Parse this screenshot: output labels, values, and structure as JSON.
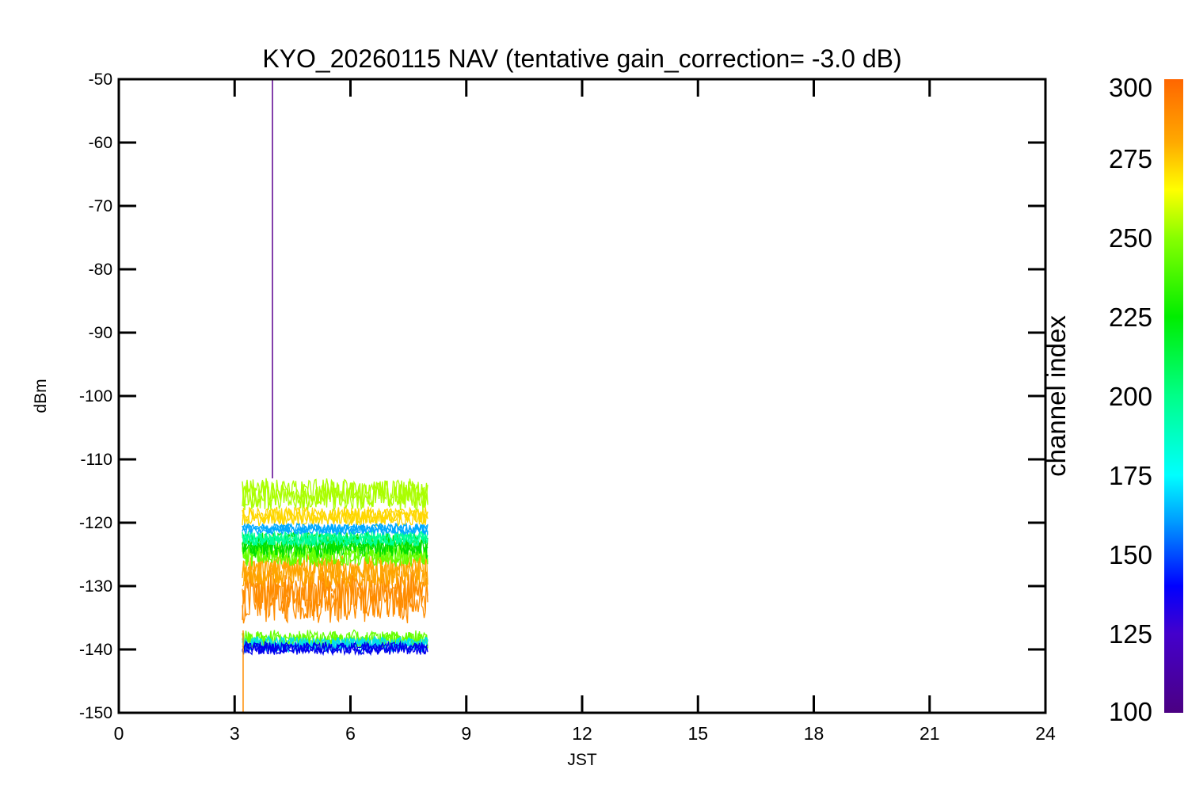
{
  "chart_data": {
    "type": "line",
    "title": "KYO_20260115 NAV (tentative gain_correction= -3.0 dB)",
    "xlabel": "JST",
    "ylabel": "dBm",
    "xlim": [
      0,
      24
    ],
    "ylim": [
      -150,
      -50
    ],
    "x_ticks": [
      0,
      3,
      6,
      9,
      12,
      15,
      18,
      21,
      24
    ],
    "y_ticks": [
      -50,
      -60,
      -70,
      -80,
      -90,
      -100,
      -110,
      -120,
      -130,
      -140,
      -150
    ],
    "grid": false,
    "data_x_range": [
      3.2,
      8.0
    ],
    "series": [
      {
        "channel_index": 285,
        "color": "#ff8c00",
        "level": -131.5,
        "spread": 3.4
      },
      {
        "channel_index": 280,
        "color": "#ffa500",
        "level": -127.5,
        "spread": 2.2
      },
      {
        "channel_index": 270,
        "color": "#ffd700",
        "level": -119.0,
        "spread": 1.2
      },
      {
        "channel_index": 262,
        "color": "#aaff00",
        "level": -115.5,
        "spread": 2.0
      },
      {
        "channel_index": 240,
        "color": "#66ff00",
        "level": -125.0,
        "spread": 1.5
      },
      {
        "channel_index": 225,
        "color": "#00e000",
        "level": -123.5,
        "spread": 1.6
      },
      {
        "channel_index": 190,
        "color": "#00ff99",
        "level": -122.5,
        "spread": 1.0
      },
      {
        "channel_index": 160,
        "color": "#00aaff",
        "level": -121.0,
        "spread": 0.7
      },
      {
        "channel_index": 240,
        "color": "#66ff00",
        "level": -138.5,
        "spread": 1.2
      },
      {
        "channel_index": 175,
        "color": "#00ddee",
        "level": -139.2,
        "spread": 1.0
      },
      {
        "channel_index": 130,
        "color": "#0000ee",
        "level": -139.8,
        "spread": 0.8
      }
    ],
    "spikes": [
      {
        "x": 3.98,
        "y_top": -50,
        "y_bottom": -113,
        "channel_index": 105,
        "color": "#5a0090"
      },
      {
        "x": 3.22,
        "y_top": -137,
        "y_bottom": -150,
        "channel_index": 285,
        "color": "#ff8c00"
      }
    ],
    "colorbar": {
      "label": "channel index",
      "range": [
        100,
        300
      ],
      "ticks": [
        300,
        275,
        250,
        225,
        200,
        175,
        150,
        125,
        100
      ],
      "stops": [
        {
          "value": 100,
          "color": "#4b0082"
        },
        {
          "value": 125,
          "color": "#4400cc"
        },
        {
          "value": 140,
          "color": "#0000ff"
        },
        {
          "value": 160,
          "color": "#0099ff"
        },
        {
          "value": 175,
          "color": "#00ffff"
        },
        {
          "value": 200,
          "color": "#00ff88"
        },
        {
          "value": 225,
          "color": "#00ee00"
        },
        {
          "value": 250,
          "color": "#88ff00"
        },
        {
          "value": 265,
          "color": "#ffff00"
        },
        {
          "value": 280,
          "color": "#ffaa00"
        },
        {
          "value": 300,
          "color": "#ff6600"
        }
      ]
    }
  }
}
